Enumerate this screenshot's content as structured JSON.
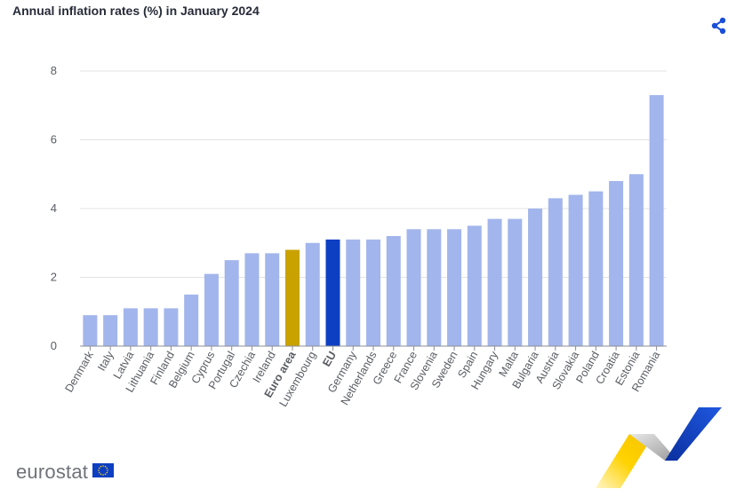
{
  "title": "Annual inflation rates (%) in January 2024",
  "brand": "eurostat",
  "icons": {
    "share": "share-icon",
    "flag": "eu-flag-icon"
  },
  "colors": {
    "default": "#a2b5ec",
    "euro_area": "#c9a200",
    "eu": "#0d3fc3",
    "grid": "#e3e3e3",
    "axis": "#8b8f96",
    "text": "#595c61"
  },
  "chart_data": {
    "type": "bar",
    "title": "Annual inflation rates (%) in January 2024",
    "xlabel": "",
    "ylabel": "",
    "ylim": [
      0,
      8
    ],
    "yticks": [
      0,
      2,
      4,
      6,
      8
    ],
    "grid": true,
    "categories": [
      "Denmark",
      "Italy",
      "Latvia",
      "Lithuania",
      "Finland",
      "Belgium",
      "Cyprus",
      "Portugal",
      "Czechia",
      "Ireland",
      "Euro area",
      "Luxembourg",
      "EU",
      "Germany",
      "Netherlands",
      "Greece",
      "France",
      "Slovenia",
      "Sweden",
      "Spain",
      "Hungary",
      "Malta",
      "Bulgaria",
      "Austria",
      "Slovakia",
      "Poland",
      "Croatia",
      "Estonia",
      "Romania"
    ],
    "values": [
      0.9,
      0.9,
      1.1,
      1.1,
      1.1,
      1.5,
      2.1,
      2.5,
      2.7,
      2.7,
      2.8,
      3.0,
      3.1,
      3.1,
      3.1,
      3.2,
      3.4,
      3.4,
      3.4,
      3.5,
      3.7,
      3.7,
      4.0,
      4.3,
      4.4,
      4.5,
      4.8,
      5.0,
      7.3
    ],
    "highlight": {
      "Euro area": "euro_area",
      "EU": "eu"
    },
    "bold_labels": [
      "Euro area",
      "EU"
    ]
  }
}
